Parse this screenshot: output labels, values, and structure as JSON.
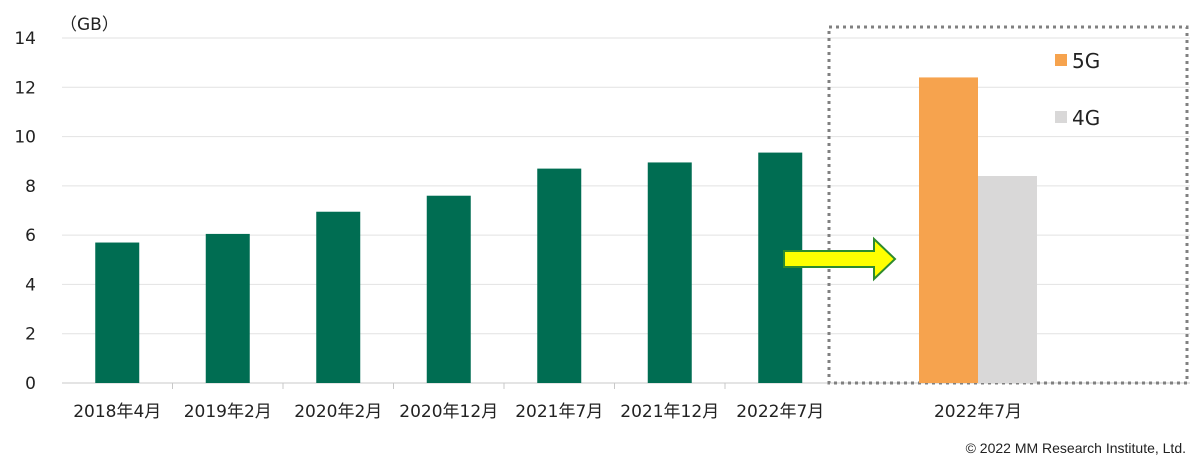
{
  "chart_data": [
    {
      "type": "bar",
      "ylabel": "（GB）",
      "ylim": [
        0,
        14
      ],
      "yticks": [
        0,
        2,
        4,
        6,
        8,
        10,
        12,
        14
      ],
      "grid": true,
      "categories": [
        "2018年4月",
        "2019年2月",
        "2020年2月",
        "2020年12月",
        "2021年7月",
        "2021年12月",
        "2022年7月"
      ],
      "values": [
        5.7,
        6.05,
        6.95,
        7.6,
        8.7,
        8.95,
        9.35
      ],
      "colors": {
        "bar": "#006d52"
      }
    },
    {
      "type": "bar",
      "categories": [
        "2022年7月"
      ],
      "series": [
        {
          "name": "5G",
          "values": [
            12.4
          ],
          "color": "#f6a34e"
        },
        {
          "name": "4G",
          "values": [
            8.4
          ],
          "color": "#d9d8d8"
        }
      ],
      "legend": "top-right"
    }
  ],
  "arrow": {
    "fill": "#ffff00",
    "stroke": "#2e8b2e"
  },
  "copyright": "© 2022 MM Research Institute, Ltd."
}
